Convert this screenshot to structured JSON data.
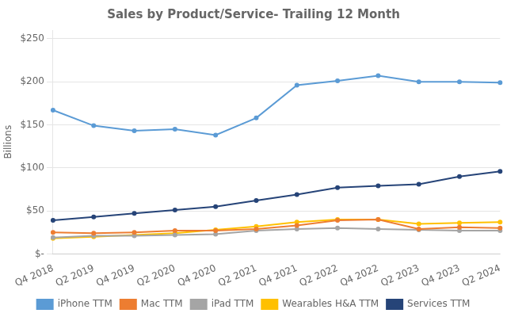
{
  "chart_data": {
    "type": "line",
    "title": "Sales by Product/Service- Trailing 12 Month",
    "y_label": "Billions",
    "categories": [
      "Q4 2018",
      "Q2 2019",
      "Q4 2019",
      "Q2 2020",
      "Q4 2020",
      "Q2 2021",
      "Q4 2021",
      "Q2 2022",
      "Q4 2022",
      "Q2 2023",
      "Q4 2023",
      "Q2 2024"
    ],
    "series": [
      {
        "name": "iPhone TTM",
        "color": "#5B9BD5",
        "values": [
          167,
          149,
          143,
          145,
          138,
          158,
          196,
          201,
          207,
          200,
          200,
          199
        ]
      },
      {
        "name": "Mac TTM",
        "color": "#ED7D31",
        "values": [
          25,
          24,
          25,
          27,
          27,
          29,
          33,
          39,
          40,
          29,
          31,
          30
        ]
      },
      {
        "name": "iPad TTM",
        "color": "#A5A5A5",
        "values": [
          19,
          21,
          21,
          22,
          23,
          27,
          29,
          30,
          29,
          28,
          27,
          27
        ]
      },
      {
        "name": "Wearables H&A TTM",
        "color": "#FFC000",
        "values": [
          18,
          20,
          22,
          24,
          28,
          32,
          37,
          40,
          40,
          35,
          36,
          37
        ]
      },
      {
        "name": "Services TTM",
        "color": "#264478",
        "values": [
          39,
          43,
          47,
          51,
          55,
          62,
          69,
          77,
          79,
          81,
          90,
          96
        ]
      }
    ],
    "ylim": [
      0,
      260
    ],
    "yticks": [
      {
        "value": 0,
        "label": "$-"
      },
      {
        "value": 50,
        "label": "$50"
      },
      {
        "value": 100,
        "label": "$100"
      },
      {
        "value": 150,
        "label": "$150"
      },
      {
        "value": 200,
        "label": "$200"
      },
      {
        "value": 250,
        "label": "$250"
      }
    ],
    "grid": "y",
    "legend": "bottom"
  }
}
